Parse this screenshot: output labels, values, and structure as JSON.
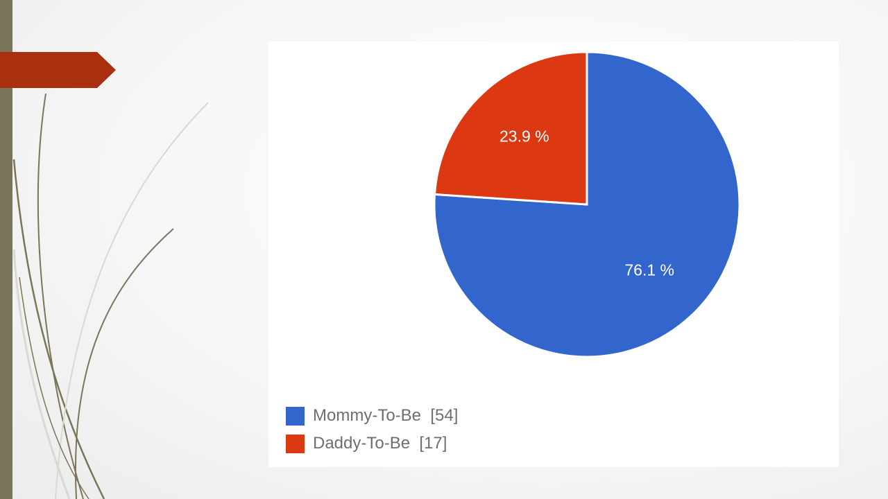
{
  "chart_data": {
    "type": "pie",
    "categories": [
      "Mommy-To-Be",
      "Daddy-To-Be"
    ],
    "values": [
      54,
      17
    ],
    "percent_labels": [
      "76.1 %",
      "23.9 %"
    ],
    "colors": [
      "#3366cc",
      "#dc3912"
    ],
    "legend": {
      "placement": "bottom-left",
      "items": [
        {
          "label": "Mommy-To-Be  [54]",
          "color": "#3366cc"
        },
        {
          "label": "Daddy-To-Be  [17]",
          "color": "#dc3912"
        }
      ]
    }
  },
  "decor": {
    "left_bar_color": "#7a7458",
    "tab_color": "#a8300f"
  }
}
